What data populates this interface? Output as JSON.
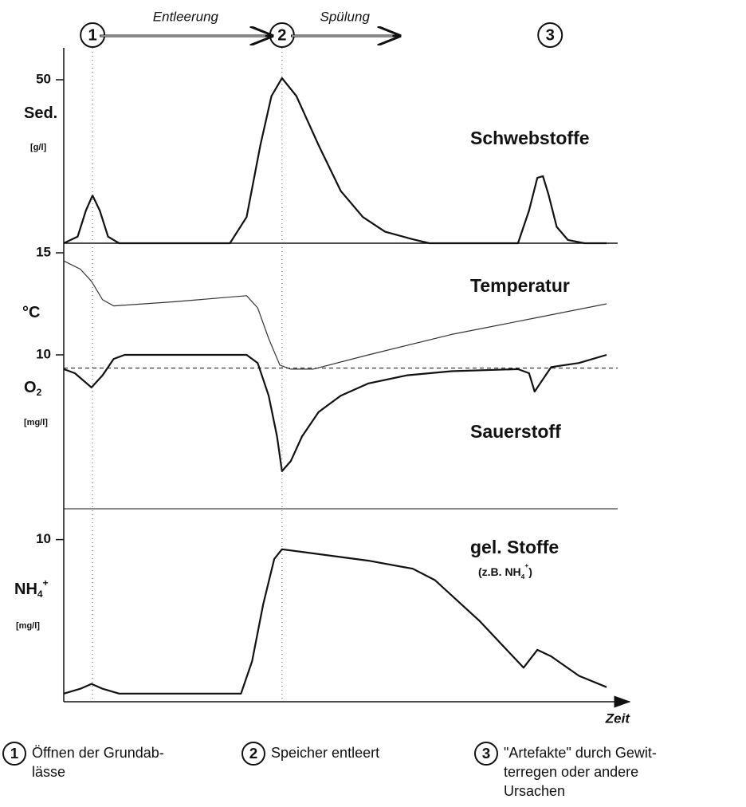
{
  "chart_data": [
    {
      "type": "line",
      "xlim": [
        0,
        100
      ],
      "ylim": [
        0,
        55
      ],
      "yticks": [
        50
      ],
      "ylabels": [
        {
          "text": "Sed."
        },
        {
          "text": "[g/l]"
        }
      ],
      "series": [
        {
          "name": "Schwebstoffe",
          "color": "#111",
          "x": [
            0,
            2.5,
            4,
            5.2,
            6.5,
            8,
            10,
            30,
            33,
            35.5,
            37.5,
            39.4,
            42,
            46,
            50,
            54,
            58,
            63,
            66,
            82,
            84,
            85.5,
            86.5,
            87.5,
            89,
            91,
            94,
            98
          ],
          "values": [
            0,
            2,
            10,
            14.6,
            10,
            2,
            0,
            0,
            8,
            30,
            45,
            50.5,
            45,
            30,
            16,
            8,
            3.5,
            1.2,
            0,
            0,
            10,
            20,
            20.5,
            15,
            5,
            1,
            0,
            0
          ]
        }
      ]
    },
    {
      "type": "line",
      "xlim": [
        0,
        100
      ],
      "ylim": [
        2.46,
        15
      ],
      "yticks": [
        10,
        15
      ],
      "reference": 9.35,
      "ylabels": [
        {
          "text": "°C"
        },
        {
          "text": "O",
          "sub": "2"
        },
        {
          "text": "[mg/l]"
        }
      ],
      "series": [
        {
          "name": "Temperatur",
          "color": "#333",
          "x": [
            0,
            3,
            5,
            7,
            9,
            20,
            33,
            35,
            37,
            39,
            41,
            45,
            55,
            70,
            85,
            98
          ],
          "values": [
            14.6,
            14.2,
            13.6,
            12.7,
            12.4,
            12.6,
            12.9,
            12.3,
            10.8,
            9.5,
            9.3,
            9.3,
            10,
            11,
            11.8,
            12.5
          ]
        },
        {
          "name": "Sauerstoff",
          "color": "#111",
          "x": [
            0,
            2,
            5,
            7,
            9,
            11,
            33,
            35,
            37,
            38.5,
            39.4,
            41,
            43,
            46,
            50,
            55,
            62,
            70,
            82,
            84,
            85,
            86,
            88,
            93,
            98
          ],
          "values": [
            9.3,
            9.1,
            8.4,
            9,
            9.8,
            10,
            10,
            9.6,
            8,
            6,
            4.3,
            4.8,
            6,
            7.2,
            8,
            8.6,
            9,
            9.2,
            9.3,
            9.1,
            8.2,
            8.6,
            9.4,
            9.6,
            10
          ]
        }
      ]
    },
    {
      "type": "line",
      "xlim": [
        0,
        100
      ],
      "ylim": [
        0,
        11.8
      ],
      "yticks": [
        10
      ],
      "ylabels": [
        {
          "text": "NH",
          "sub": "4",
          "sup": "+"
        },
        {
          "text": "[mg/l]"
        }
      ],
      "note": {
        "text": "(z.B. NH",
        "sub": "4",
        "sup": "+",
        "end": ")"
      },
      "x_label": "Zeit",
      "series": [
        {
          "name": "gel. Stoffe",
          "color": "#111",
          "x": [
            0,
            3,
            5,
            7,
            10,
            32,
            34,
            36,
            38,
            39.4,
            55,
            63,
            67,
            75,
            83,
            85.5,
            88,
            93,
            98
          ],
          "values": [
            0.5,
            0.8,
            1.1,
            0.8,
            0.5,
            0.5,
            2.5,
            6,
            8.8,
            9.4,
            8.7,
            8.2,
            7.5,
            5,
            2.1,
            3.2,
            2.8,
            1.6,
            0.9
          ]
        }
      ]
    }
  ],
  "events": [
    {
      "label": "1",
      "x": 5.2
    },
    {
      "label": "2",
      "x": 39.4
    },
    {
      "label": "3",
      "x": 87.8
    }
  ],
  "phases": [
    {
      "label": "Entleerung",
      "from": 6.5,
      "to": 37.5
    },
    {
      "label": "Spülung",
      "from": 41,
      "to": 60.5
    }
  ],
  "legend": [
    {
      "label": "1",
      "lines": [
        "Öffnen der Grundab-",
        "lässe"
      ]
    },
    {
      "label": "2",
      "lines": [
        "Speicher entleert"
      ]
    },
    {
      "label": "3",
      "lines": [
        "\"Artefakte\" durch Gewit-",
        "terregen oder andere",
        "Ursachen"
      ]
    }
  ]
}
